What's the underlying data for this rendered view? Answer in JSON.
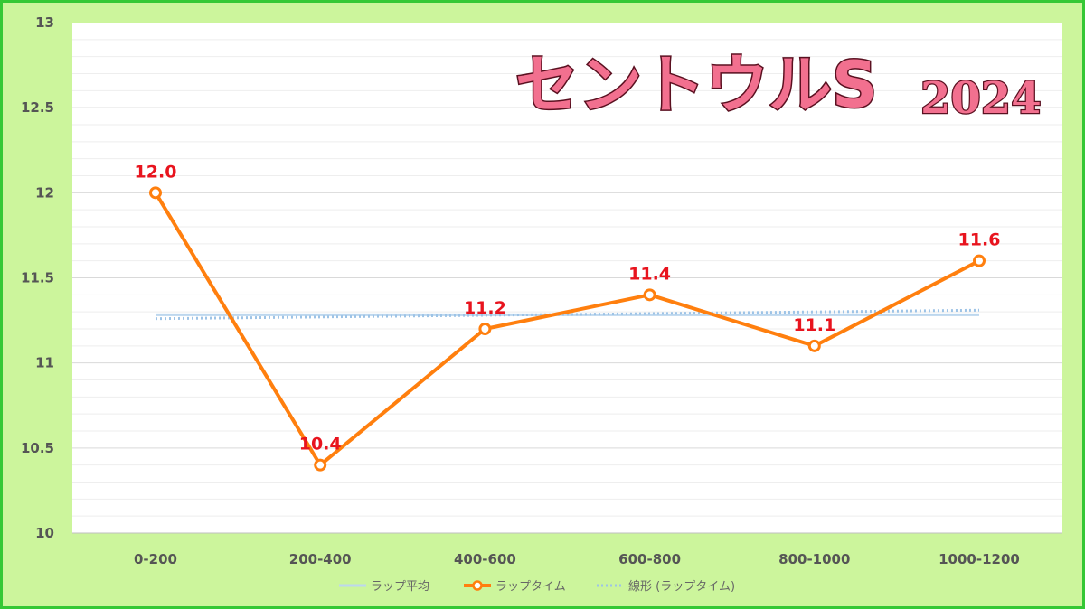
{
  "chart_data": {
    "type": "line",
    "title": "セントウルS",
    "title_year": "2024",
    "categories": [
      "0-200",
      "200-400",
      "400-600",
      "600-800",
      "800-1000",
      "1000-1200"
    ],
    "ylim": [
      10,
      13
    ],
    "yticks": [
      "10",
      "10.5",
      "11",
      "11.5",
      "12",
      "12.5",
      "13"
    ],
    "ytick_values": [
      10,
      10.5,
      11,
      11.5,
      12,
      12.5,
      13
    ],
    "grid": true,
    "legend_placement": "bottom",
    "series": [
      {
        "name": "ラップ平均",
        "values": [
          11.283,
          11.283,
          11.283,
          11.283,
          11.283,
          11.283
        ],
        "color": "#bdd7ee",
        "style": "solid"
      },
      {
        "name": "ラップタイム",
        "values": [
          12.0,
          10.4,
          11.2,
          11.4,
          11.1,
          11.6
        ],
        "data_labels": [
          "12.0",
          "10.4",
          "11.2",
          "11.4",
          "11.1",
          "11.6"
        ],
        "color": "#ff7f0e",
        "style": "solid-markers"
      },
      {
        "name": "線形 (ラップタイム)",
        "values": [
          11.26,
          11.27,
          11.28,
          11.29,
          11.3,
          11.31
        ],
        "color": "#9dc3e6",
        "style": "dotted"
      }
    ]
  }
}
